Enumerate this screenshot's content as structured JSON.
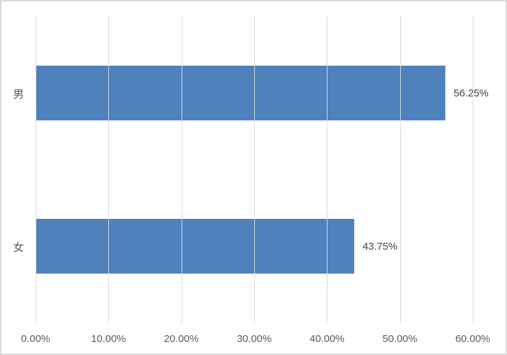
{
  "chart": {
    "background": "#ffffff",
    "frame_border_color": "#d9d9d9"
  },
  "chart_data": {
    "type": "bar",
    "orientation": "horizontal",
    "title": "",
    "categories": [
      "男",
      "女"
    ],
    "values": [
      56.25,
      43.75
    ],
    "data_labels": [
      "56.25%",
      "43.75%"
    ],
    "x_ticks": [
      {
        "label": "0.00%",
        "value": 0
      },
      {
        "label": "10.00%",
        "value": 10
      },
      {
        "label": "20.00%",
        "value": 20
      },
      {
        "label": "30.00%",
        "value": 30
      },
      {
        "label": "40.00%",
        "value": 40
      },
      {
        "label": "50.00%",
        "value": 50
      },
      {
        "label": "60.00%",
        "value": 60
      }
    ],
    "xlim": [
      0,
      60
    ],
    "xlabel": "",
    "ylabel": "",
    "grid": true,
    "legend": "none",
    "bar_color": "#4f81bd",
    "gridline_color": "#d9d9d9",
    "tick_label_color": "#595959",
    "data_label_color": "#404040"
  }
}
